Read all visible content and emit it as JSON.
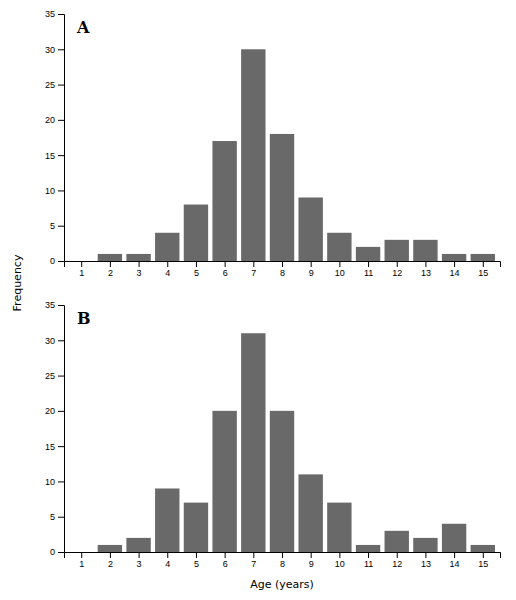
{
  "chart_data": [
    {
      "type": "bar",
      "title": "A",
      "ylabel": "Frequency",
      "x": [
        1,
        2,
        3,
        4,
        5,
        6,
        7,
        8,
        9,
        10,
        11,
        12,
        13,
        14,
        15
      ],
      "values": [
        0,
        1,
        1,
        4,
        8,
        17,
        30,
        18,
        9,
        4,
        2,
        3,
        3,
        1,
        1
      ],
      "color": "#696969",
      "xlim": [
        0.4,
        15.6
      ],
      "xticks": [
        1,
        2,
        3,
        4,
        5,
        6,
        7,
        8,
        9,
        10,
        11,
        12,
        13,
        14,
        15
      ],
      "ylim": [
        0,
        35
      ],
      "yticks": [
        0,
        5,
        10,
        15,
        20,
        25,
        30,
        35
      ],
      "grid": false
    },
    {
      "type": "bar",
      "title": "B",
      "xlabel": "Age (years)",
      "x": [
        1,
        2,
        3,
        4,
        5,
        6,
        7,
        8,
        9,
        10,
        11,
        12,
        13,
        14,
        15
      ],
      "values": [
        0,
        1,
        2,
        9,
        7,
        20,
        31,
        20,
        11,
        7,
        1,
        3,
        2,
        4,
        1
      ],
      "color": "#696969",
      "xlim": [
        0.4,
        15.6
      ],
      "xticks": [
        1,
        2,
        3,
        4,
        5,
        6,
        7,
        8,
        9,
        10,
        11,
        12,
        13,
        14,
        15
      ],
      "ylim": [
        0,
        35
      ],
      "yticks": [
        0,
        5,
        10,
        15,
        20,
        25,
        30,
        35
      ],
      "grid": false
    }
  ]
}
